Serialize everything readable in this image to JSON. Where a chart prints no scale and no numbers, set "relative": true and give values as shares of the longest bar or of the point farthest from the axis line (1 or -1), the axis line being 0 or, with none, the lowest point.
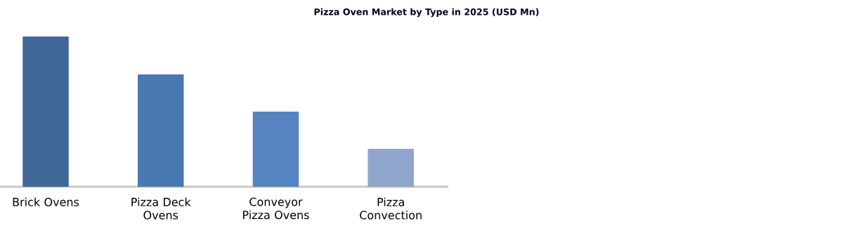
{
  "chart_data": {
    "type": "bar",
    "title": "Pizza Oven Market by Type in 2025 (USD Mn)",
    "categories": [
      "Brick Ovens",
      "Pizza Deck Ovens",
      "Conveyor Pizza Ovens",
      "Pizza Convection"
    ],
    "values": [
      1,
      0.748,
      0.5,
      0.252
    ],
    "colors": [
      "#3f6797",
      "#4a78b0",
      "#5584c0",
      "#8fa5cb"
    ],
    "relative": true
  }
}
